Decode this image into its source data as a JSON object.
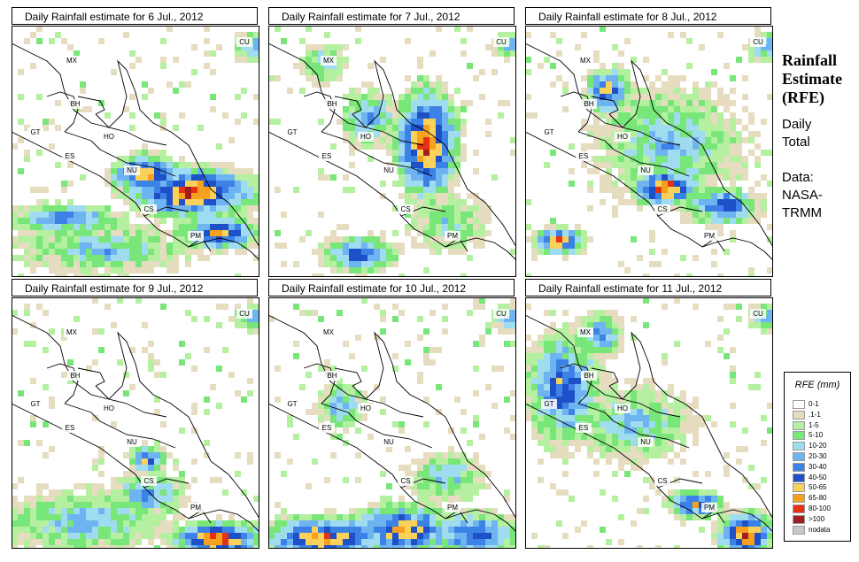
{
  "panels": [
    {
      "title": "Daily Rainfall estimate for  6 Jul., 2012"
    },
    {
      "title": "Daily Rainfall estimate for  7 Jul., 2012"
    },
    {
      "title": "Daily Rainfall estimate for  8 Jul., 2012"
    },
    {
      "title": "Daily Rainfall estimate for  9 Jul., 2012"
    },
    {
      "title": "Daily Rainfall estimate for  10 Jul., 2012"
    },
    {
      "title": "Daily Rainfall estimate for  11 Jul., 2012"
    }
  ],
  "country_labels": [
    "MX",
    "BH",
    "GT",
    "HO",
    "ES",
    "NU",
    "CS",
    "PM",
    "CU"
  ],
  "side": {
    "title_lines": [
      "Rainfall",
      "Estimate",
      "(RFE)"
    ],
    "subtitle_lines": [
      "Daily",
      "Total"
    ],
    "data_lines": [
      "Data:",
      "NASA-",
      "TRMM"
    ]
  },
  "legend": {
    "title": "RFE (mm)",
    "entries": [
      {
        "label": "0-1",
        "color": "#ffffff"
      },
      {
        "label": ".1-1",
        "color": "#e6dcc0"
      },
      {
        "label": "1-5",
        "color": "#b4f0a0"
      },
      {
        "label": "5-10",
        "color": "#78e678"
      },
      {
        "label": "10-20",
        "color": "#a0dcf0"
      },
      {
        "label": "20-30",
        "color": "#6eb4f0"
      },
      {
        "label": "30-40",
        "color": "#3c82e6"
      },
      {
        "label": "40-50",
        "color": "#1e50c8"
      },
      {
        "label": "50-65",
        "color": "#fad25a"
      },
      {
        "label": "65-80",
        "color": "#f5a01e"
      },
      {
        "label": "80-100",
        "color": "#e63214"
      },
      {
        "label": ">100",
        "color": "#a01e1e"
      },
      {
        "label": "nodata",
        "color": "#c8c8c8"
      }
    ]
  }
}
